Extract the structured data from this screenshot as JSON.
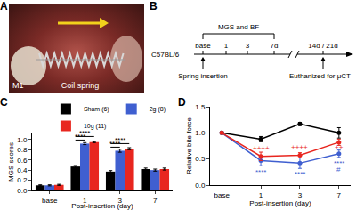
{
  "panel_a": {
    "letter": "A",
    "labels": [
      "M1",
      "Coil spring"
    ]
  },
  "panel_b": {
    "letter": "B",
    "strain": "C57BL/6",
    "measure": "MGS and BF",
    "timepoints": [
      "base",
      "1",
      "3",
      "7d"
    ],
    "end": "14d / 21d",
    "events": [
      "Spring insertion",
      "Euthanized for μCT"
    ]
  },
  "chart_data": [
    {
      "panel": "C",
      "type": "bar",
      "categories": [
        "base",
        "1",
        "3",
        "7"
      ],
      "x_label": "Post-insertion (day)",
      "y_label": "MGS scores",
      "ylim": [
        0,
        1.12
      ],
      "yticks": [
        {
          "value": 0,
          "label": "0.0"
        },
        0.2,
        0.4,
        0.6,
        0.8,
        {
          "value": 1,
          "label": "1.0"
        }
      ],
      "legend": "top",
      "series": [
        {
          "name": "Sham (6)",
          "color": "#000000",
          "values": [
            0.1,
            0.47,
            0.37,
            0.42
          ],
          "errors": [
            0.01,
            0.02,
            0.02,
            0.02
          ]
        },
        {
          "name": "2g (8)",
          "color": "#3f5fd0",
          "values": [
            0.1,
            0.92,
            0.78,
            0.4
          ],
          "errors": [
            0.01,
            0.02,
            0.03,
            0.02
          ]
        },
        {
          "name": "10g (11)",
          "color": "#e8261f",
          "values": [
            0.11,
            0.95,
            0.82,
            0.42
          ],
          "errors": [
            0.01,
            0.01,
            0.02,
            0.02
          ]
        }
      ],
      "annotations": [
        {
          "text": "****",
          "category": "1",
          "y": 0.99,
          "between": [
            "Sham (6)",
            "2g (8)"
          ]
        },
        {
          "text": "****",
          "category": "1",
          "y": 1.06,
          "between": [
            "Sham (6)",
            "10g (11)"
          ]
        },
        {
          "text": "****",
          "category": "3",
          "y": 0.85,
          "between": [
            "Sham (6)",
            "2g (8)"
          ]
        },
        {
          "text": "****",
          "category": "3",
          "y": 0.92,
          "between": [
            "Sham (6)",
            "10g (11)"
          ]
        }
      ]
    },
    {
      "panel": "D",
      "type": "line",
      "categories": [
        "base",
        "1",
        "3",
        "7"
      ],
      "x_label": "Post-insertion (day)",
      "y_label": "Relative bite force",
      "ylim": [
        0,
        1.5
      ],
      "yticks": [
        {
          "value": 0,
          "label": "0.0"
        },
        0.5,
        {
          "value": 1,
          "label": "1.0"
        },
        1.5
      ],
      "marker": "circle",
      "series": [
        {
          "name": "Sham (6)",
          "color": "#000000",
          "values": [
            1.0,
            0.88,
            1.17,
            1.0
          ],
          "errors": [
            0,
            0.05,
            0.03,
            0.1
          ]
        },
        {
          "name": "2g (8)",
          "color": "#3f5fd0",
          "values": [
            1.0,
            0.47,
            0.42,
            0.6
          ],
          "errors": [
            0,
            0.1,
            0.1,
            0.07
          ]
        },
        {
          "name": "10g (11)",
          "color": "#e8261f",
          "values": [
            1.0,
            0.55,
            0.57,
            0.82
          ],
          "errors": [
            0,
            0.08,
            0.05,
            0.06
          ]
        }
      ],
      "annotations": [
        {
          "text": "++++",
          "category": "1",
          "y": 0.7,
          "color": "#e8261f"
        },
        {
          "text": "++++",
          "category": "3",
          "y": 0.72,
          "color": "#e8261f"
        },
        {
          "text": "****",
          "category": "1",
          "y": 0.25,
          "color": "#3f5fd0"
        },
        {
          "text": "****",
          "category": "3",
          "y": 0.22,
          "color": "#3f5fd0"
        },
        {
          "text": "****",
          "category": "7",
          "y": 0.42,
          "color": "#3f5fd0"
        },
        {
          "text": "++",
          "category": "7",
          "y": 0.72,
          "color": "#e8261f"
        },
        {
          "text": "#",
          "category": "7",
          "y": 0.3,
          "color": "#3f5fd0"
        }
      ]
    }
  ]
}
